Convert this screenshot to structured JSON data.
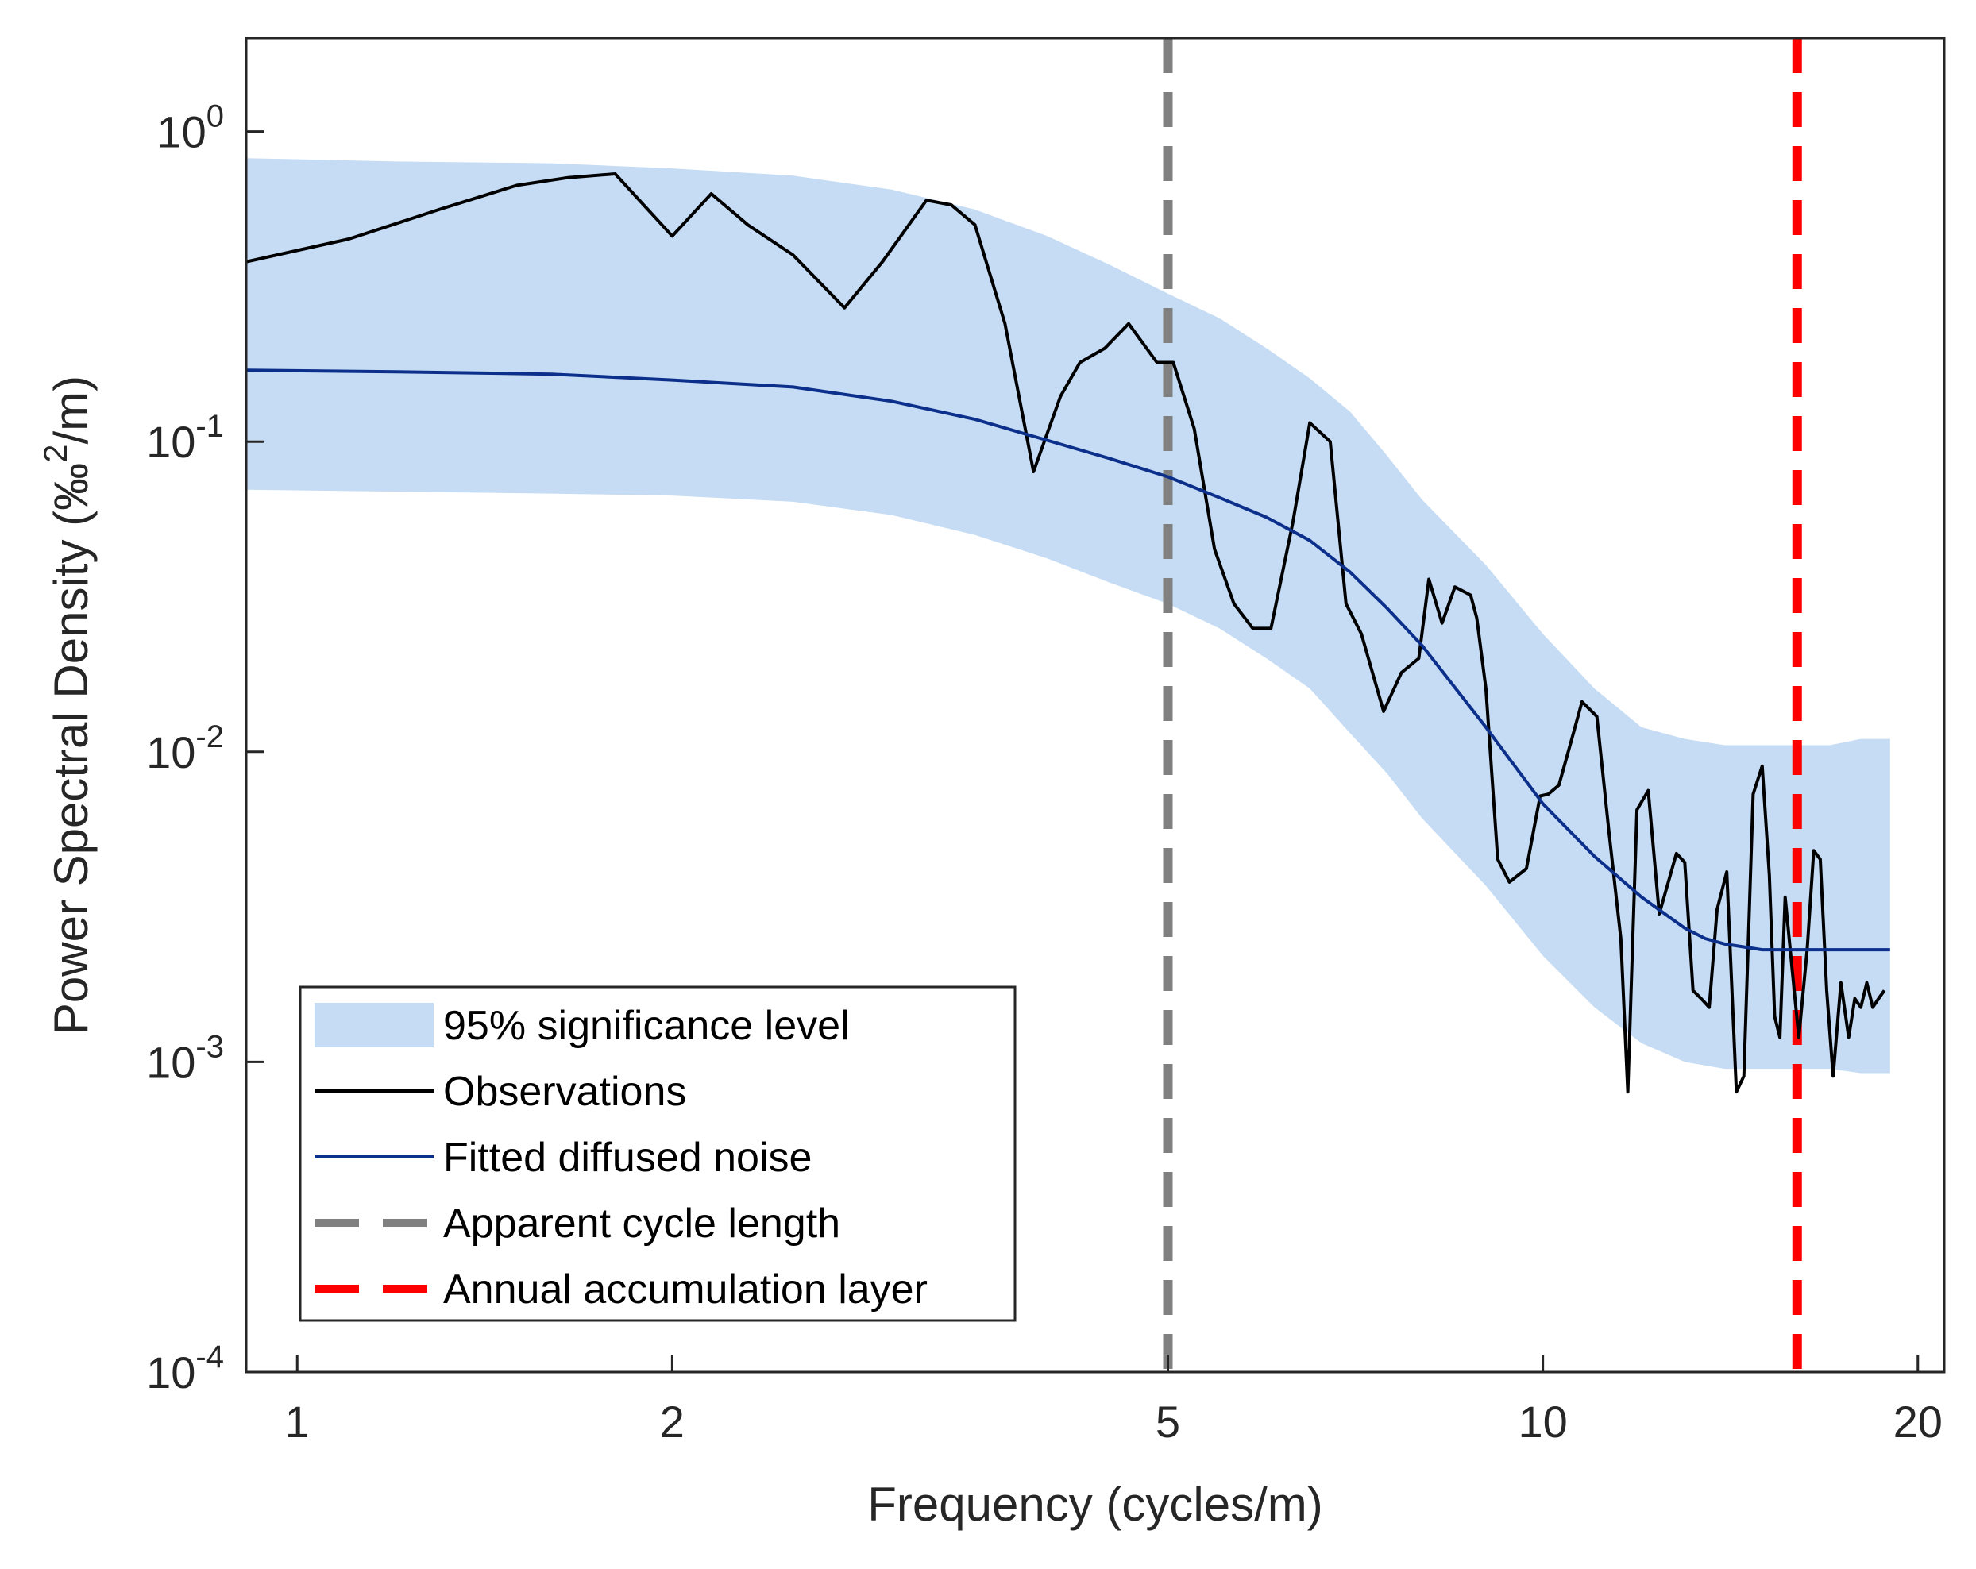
{
  "chart_data": {
    "type": "line",
    "xscale": "log",
    "yscale": "log",
    "xlabel": "Frequency (cycles/m)",
    "ylabel": "Power Spectral Density (‰²/m)",
    "ylabel_parts": {
      "before": "Power Spectral Density (‰",
      "sup": "2",
      "after": "/m)"
    },
    "xlim": [
      0.91,
      21
    ],
    "ylim": [
      0.0001,
      2
    ],
    "xticks": [
      {
        "value": 1,
        "label": "1"
      },
      {
        "value": 2,
        "label": "2"
      },
      {
        "value": 5,
        "label": "5"
      },
      {
        "value": 10,
        "label": "10"
      },
      {
        "value": 20,
        "label": "20"
      }
    ],
    "yticks": [
      {
        "value": 0.0001,
        "base": "10",
        "exp": "-4"
      },
      {
        "value": 0.001,
        "base": "10",
        "exp": "-3"
      },
      {
        "value": 0.01,
        "base": "10",
        "exp": "-2"
      },
      {
        "value": 0.1,
        "base": "10",
        "exp": "-1"
      },
      {
        "value": 1,
        "base": "10",
        "exp": "0"
      }
    ],
    "colors": {
      "band": "#c5dcf4",
      "observations": "#000000",
      "fitted": "#0b2f8a",
      "apparent": "#808080",
      "annual": "#ff0000",
      "axes": "#262626"
    },
    "band_95": {
      "x": [
        0.91,
        1.2,
        1.6,
        2.0,
        2.5,
        3.0,
        3.5,
        4.0,
        4.5,
        5.0,
        5.5,
        6.0,
        6.5,
        7.0,
        7.5,
        8.0,
        9.0,
        10.0,
        11.0,
        12.0,
        13.0,
        14.0,
        15.0,
        16.0,
        17.0,
        18.0,
        19.0
      ],
      "upper": [
        0.82,
        0.8,
        0.79,
        0.76,
        0.72,
        0.65,
        0.56,
        0.46,
        0.37,
        0.3,
        0.25,
        0.2,
        0.16,
        0.125,
        0.09,
        0.065,
        0.04,
        0.024,
        0.016,
        0.012,
        0.011,
        0.0105,
        0.0105,
        0.0105,
        0.0105,
        0.011,
        0.011
      ],
      "lower": [
        0.07,
        0.069,
        0.068,
        0.067,
        0.064,
        0.058,
        0.05,
        0.042,
        0.035,
        0.03,
        0.025,
        0.02,
        0.016,
        0.0115,
        0.0085,
        0.0061,
        0.0037,
        0.0022,
        0.0015,
        0.00115,
        0.001,
        0.00095,
        0.00095,
        0.00095,
        0.00095,
        0.00092,
        0.00092
      ]
    },
    "series": [
      {
        "name": "Observations",
        "x": [
          0.91,
          1.1,
          1.3,
          1.5,
          1.65,
          1.8,
          2.0,
          2.15,
          2.3,
          2.5,
          2.75,
          2.95,
          3.2,
          3.35,
          3.5,
          3.7,
          3.9,
          4.1,
          4.25,
          4.45,
          4.65,
          4.9,
          5.05,
          5.25,
          5.45,
          5.65,
          5.85,
          6.05,
          6.3,
          6.5,
          6.75,
          6.95,
          7.15,
          7.45,
          7.7,
          7.95,
          8.1,
          8.3,
          8.5,
          8.75,
          8.85,
          9.0,
          9.2,
          9.4,
          9.7,
          9.95,
          10.1,
          10.3,
          10.55,
          10.75,
          11.05,
          11.3,
          11.55,
          11.7,
          11.9,
          12.15,
          12.4,
          12.8,
          13.0,
          13.2,
          13.4,
          13.6,
          13.8,
          14.05,
          14.3,
          14.5,
          14.75,
          15.0,
          15.2,
          15.35,
          15.5,
          15.65,
          15.85,
          16.05,
          16.3,
          16.5,
          16.7,
          16.9,
          17.1,
          17.35,
          17.6,
          17.8,
          18.0,
          18.2,
          18.4,
          18.6,
          18.8
        ],
        "y": [
          0.38,
          0.45,
          0.56,
          0.67,
          0.71,
          0.73,
          0.46,
          0.63,
          0.5,
          0.4,
          0.27,
          0.38,
          0.6,
          0.58,
          0.5,
          0.24,
          0.08,
          0.14,
          0.18,
          0.2,
          0.24,
          0.18,
          0.18,
          0.11,
          0.045,
          0.03,
          0.025,
          0.025,
          0.055,
          0.115,
          0.1,
          0.03,
          0.024,
          0.0135,
          0.018,
          0.02,
          0.036,
          0.026,
          0.034,
          0.032,
          0.027,
          0.016,
          0.0045,
          0.0038,
          0.0042,
          0.0072,
          0.0073,
          0.0078,
          0.011,
          0.0145,
          0.013,
          0.0055,
          0.0025,
          0.0008,
          0.0065,
          0.0075,
          0.003,
          0.0047,
          0.0044,
          0.0017,
          0.0016,
          0.0015,
          0.0031,
          0.0041,
          0.0008,
          0.0009,
          0.0073,
          0.009,
          0.004,
          0.0014,
          0.0012,
          0.0034,
          0.002,
          0.0012,
          0.0023,
          0.0048,
          0.0045,
          0.0017,
          0.0009,
          0.0018,
          0.0012,
          0.0016,
          0.0015,
          0.0018,
          0.0015,
          0.0016,
          0.0017
        ]
      },
      {
        "name": "Fitted diffused noise",
        "x": [
          0.91,
          1.2,
          1.6,
          2.0,
          2.5,
          3.0,
          3.5,
          4.0,
          4.5,
          5.0,
          5.5,
          6.0,
          6.5,
          7.0,
          7.5,
          8.0,
          9.0,
          10.0,
          11.0,
          12.0,
          13.0,
          13.5,
          14.0,
          15.0,
          16.0,
          17.0,
          18.0,
          19.0
        ],
        "y": [
          0.17,
          0.168,
          0.165,
          0.158,
          0.15,
          0.135,
          0.118,
          0.101,
          0.088,
          0.077,
          0.066,
          0.057,
          0.048,
          0.038,
          0.029,
          0.022,
          0.012,
          0.0068,
          0.0046,
          0.0034,
          0.0027,
          0.0025,
          0.0024,
          0.0023,
          0.0023,
          0.0023,
          0.0023,
          0.0023
        ]
      }
    ],
    "reference_lines": [
      {
        "name": "Apparent cycle length",
        "x": 5.0,
        "color": "#808080"
      },
      {
        "name": "Annual accumulation layer",
        "x": 16.0,
        "color": "#ff0000"
      }
    ],
    "legend": {
      "placement": "lower-left",
      "entries": [
        {
          "label": "95% significance level",
          "kind": "patch",
          "color": "#c5dcf4"
        },
        {
          "label": "Observations",
          "kind": "line",
          "color": "#000000"
        },
        {
          "label": "Fitted diffused noise",
          "kind": "line",
          "color": "#0b2f8a"
        },
        {
          "label": "Apparent cycle length",
          "kind": "dashed",
          "color": "#808080"
        },
        {
          "label": "Annual accumulation layer",
          "kind": "dashed",
          "color": "#ff0000"
        }
      ]
    }
  }
}
